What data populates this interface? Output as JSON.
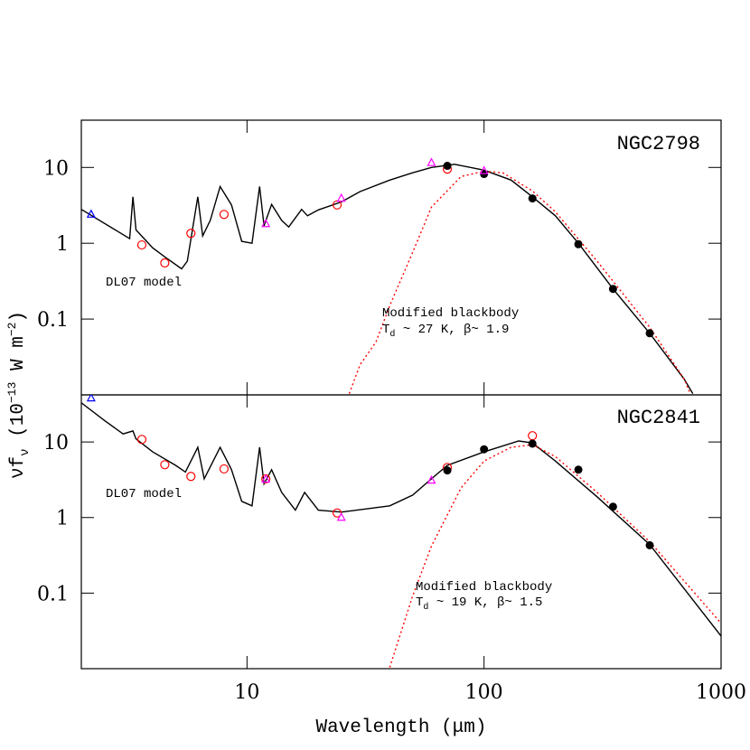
{
  "chart_data": [
    {
      "type": "line",
      "label": "NGC2798",
      "ylabel": [
        "νf",
        "ν",
        " (10",
        "−13",
        " W m",
        "−2",
        ")"
      ],
      "annotations": [
        "DL07 model",
        "Modified blackbody",
        [
          "T",
          "d",
          " ~ 27 K, β~ 1.9"
        ]
      ],
      "xlim": [
        2,
        1000
      ],
      "ylim": [
        0.01,
        42
      ],
      "log": true,
      "xticks": [
        10,
        100,
        1000
      ],
      "yticks": [
        0.1,
        1,
        10
      ],
      "show_xtick_labels": false,
      "series": [
        {
          "marker": "line",
          "color": "#000000",
          "x": [
            2.0,
            3.2,
            3.3,
            3.4,
            4.0,
            4.5,
            5.3,
            5.6,
            6.2,
            6.5,
            7.0,
            7.7,
            8.6,
            9.5,
            10.5,
            11.3,
            11.8,
            12.7,
            14,
            15,
            17,
            18,
            20,
            25,
            30,
            40,
            50,
            60,
            75,
            100,
            130,
            160,
            200,
            250,
            350,
            500,
            700,
            760
          ],
          "values": [
            2.8,
            1.15,
            4.1,
            1.5,
            0.87,
            0.66,
            0.46,
            0.58,
            4.1,
            1.25,
            2.0,
            5.6,
            3.2,
            1.06,
            1.0,
            5.6,
            1.7,
            3.25,
            2.0,
            1.64,
            2.8,
            2.3,
            2.75,
            3.5,
            4.8,
            6.8,
            8.5,
            10,
            11,
            9.2,
            6.8,
            4.1,
            2.3,
            1.0,
            0.25,
            0.065,
            0.016,
            0.0104
          ]
        },
        {
          "marker": "dotted",
          "color": "#ff0000",
          "x": [
            27,
            30,
            35,
            40,
            50,
            60,
            80,
            100,
            120,
            160,
            200,
            300,
            500,
            700,
            740
          ],
          "values": [
            0.0104,
            0.025,
            0.05,
            0.15,
            0.76,
            3,
            7.6,
            8.9,
            8.5,
            4.9,
            2.6,
            0.58,
            0.078,
            0.016,
            0.0105
          ]
        },
        {
          "marker": "open-circle",
          "color": "#ff0000",
          "x": [
            3.6,
            4.5,
            5.8,
            8.0,
            24,
            70
          ],
          "values": [
            0.95,
            0.55,
            1.35,
            2.4,
            3.2,
            9.5
          ]
        },
        {
          "marker": "filled-circle",
          "color": "#000000",
          "x": [
            70,
            100,
            160,
            250,
            350,
            500
          ],
          "values": [
            10.5,
            8.2,
            3.9,
            0.97,
            0.25,
            0.065
          ]
        },
        {
          "marker": "open-triangle",
          "color": "#ff00ff",
          "x": [
            12,
            25,
            60,
            100
          ],
          "values": [
            1.8,
            3.9,
            11.5,
            9
          ]
        },
        {
          "marker": "open-triangle",
          "color": "#0000ff",
          "x": [
            2.2
          ],
          "values": [
            2.4
          ]
        }
      ]
    },
    {
      "type": "line",
      "label": "NGC2841",
      "xlabel": [
        "Wavelength (",
        "μm",
        ")"
      ],
      "annotations": [
        "DL07 model",
        "Modified blackbody",
        [
          "T",
          "d",
          " ~ 19 K, β~ 1.5"
        ]
      ],
      "xlim": [
        2,
        1000
      ],
      "ylim": [
        0.01,
        42
      ],
      "log": true,
      "xticks": [
        10,
        100,
        1000
      ],
      "yticks": [
        0.1,
        1,
        10
      ],
      "show_xtick_labels": true,
      "series": [
        {
          "marker": "line",
          "color": "#000000",
          "x": [
            2.0,
            2.5,
            3.0,
            3.3,
            3.4,
            4.0,
            5.0,
            5.5,
            6.2,
            6.6,
            7.7,
            8.6,
            9.5,
            10.5,
            11.3,
            11.8,
            12.7,
            14,
            16,
            17.5,
            20,
            25,
            40,
            50,
            60,
            70,
            100,
            140,
            160,
            200,
            300,
            500,
            1000
          ],
          "values": [
            33,
            19.3,
            12.8,
            14,
            11,
            7.4,
            4.9,
            4.0,
            8.5,
            3.25,
            8.5,
            4.3,
            1.64,
            1.43,
            8.5,
            2.8,
            4.3,
            2.15,
            1.25,
            2.15,
            1.25,
            1.18,
            1.43,
            1.98,
            3.25,
            4.9,
            7.4,
            10.3,
            9.7,
            5.6,
            1.88,
            0.44,
            0.027
          ]
        },
        {
          "marker": "dotted",
          "color": "#ff0000",
          "x": [
            40,
            50,
            60,
            80,
            100,
            130,
            160,
            200,
            300,
            500,
            1000
          ],
          "values": [
            0.0104,
            0.092,
            0.42,
            2.47,
            5.6,
            8.5,
            9.2,
            6.4,
            2.15,
            0.48,
            0.04
          ]
        },
        {
          "marker": "open-circle",
          "color": "#ff0000",
          "x": [
            3.6,
            4.5,
            5.8,
            8.0,
            12,
            24,
            70,
            160
          ],
          "values": [
            10.8,
            5.0,
            3.5,
            4.4,
            3.25,
            1.15,
            4.6,
            12.1
          ]
        },
        {
          "marker": "filled-circle",
          "color": "#000000",
          "x": [
            70,
            100,
            160,
            250,
            350,
            500
          ],
          "values": [
            4.2,
            8.0,
            9.5,
            4.3,
            1.39,
            0.43
          ]
        },
        {
          "marker": "open-triangle",
          "color": "#ff00ff",
          "x": [
            12,
            25,
            60
          ],
          "values": [
            3.2,
            1.0,
            3.1
          ]
        },
        {
          "marker": "open-triangle",
          "color": "#0000ff",
          "x": [
            2.2
          ],
          "values": [
            38
          ]
        }
      ]
    }
  ]
}
